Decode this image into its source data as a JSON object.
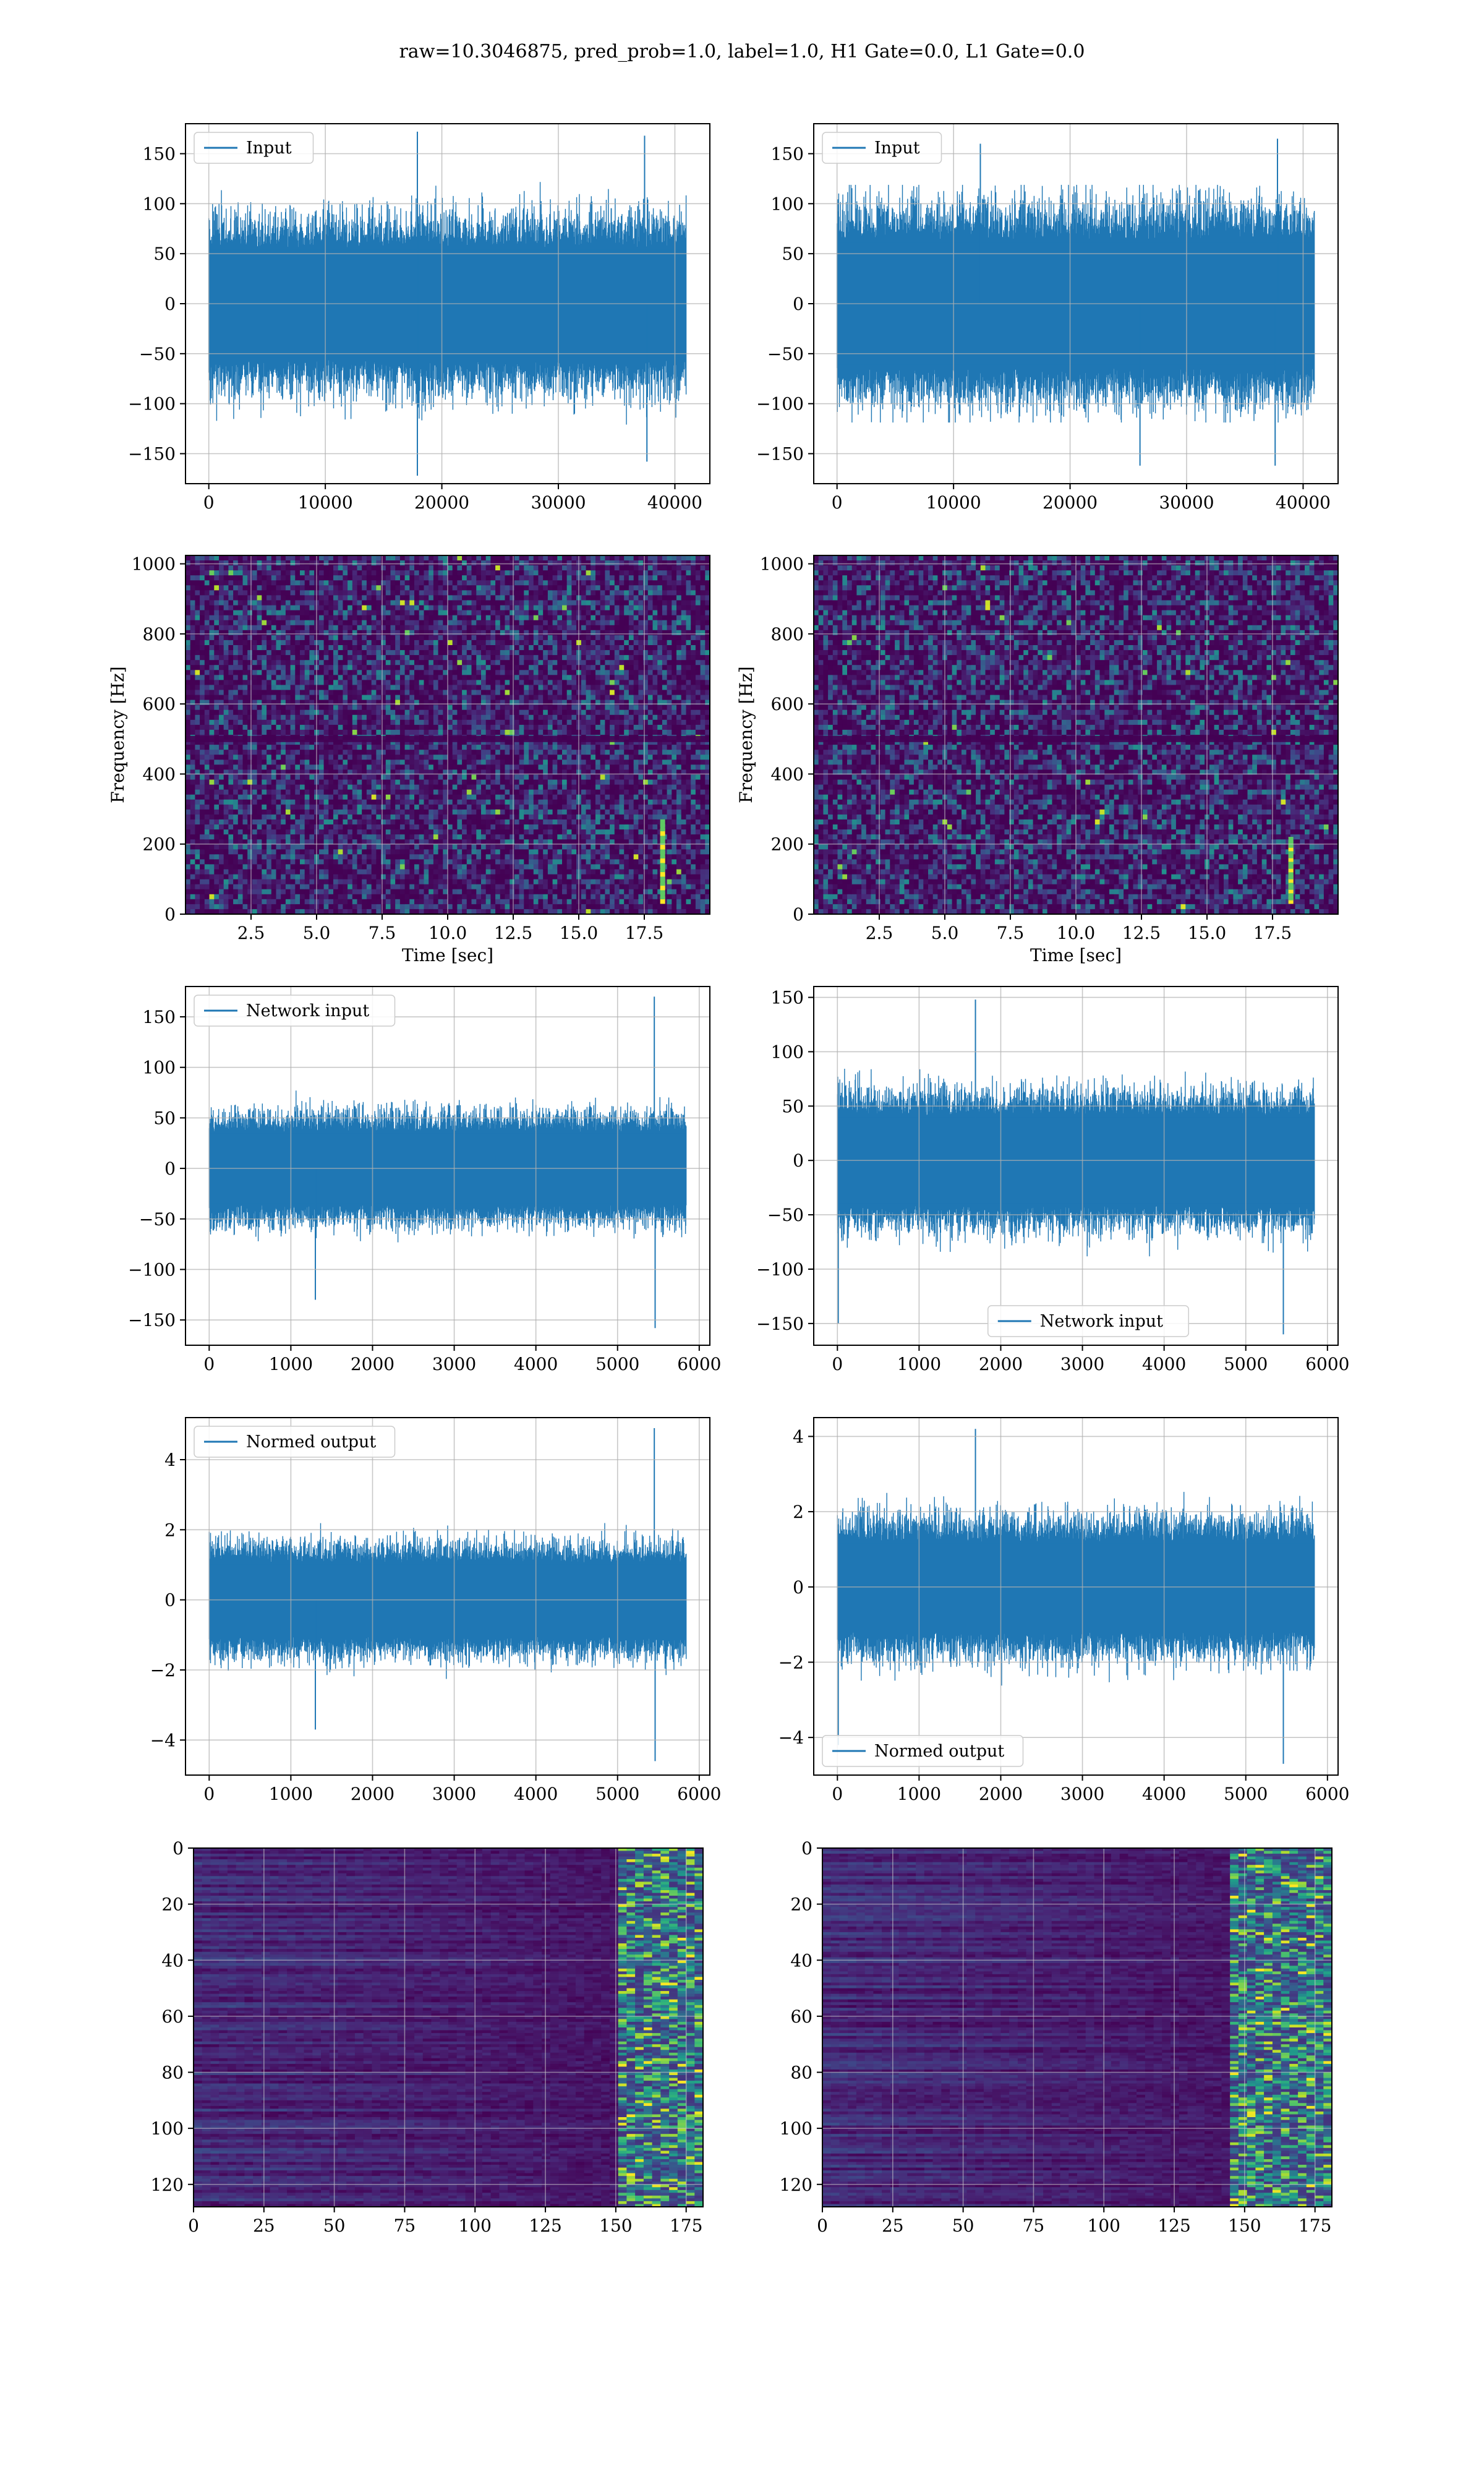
{
  "figure": {
    "title": "raw=10.3046875, pred_prob=1.0, label=1.0, H1 Gate=0.0, L1 Gate=0.0"
  },
  "colors": {
    "series": "#1f77b4",
    "grid": "#b0b0b0",
    "viridis_dark": "#440154",
    "viridis_mid": "#3b528b",
    "viridis_teal": "#21918c",
    "viridis_green": "#5ec962",
    "viridis_yellow": "#fde725"
  },
  "chart_data": [
    {
      "id": "input-h1",
      "type": "line",
      "legend": "top-left",
      "series": [
        {
          "name": "Input",
          "envelope": {
            "typical_amplitude": 75,
            "max": 172,
            "min": -172,
            "spikes": [
              [
                17900,
                172
              ],
              [
                17900,
                -172
              ],
              [
                37400,
                168
              ],
              [
                37600,
                -158
              ]
            ]
          }
        }
      ],
      "x_range": [
        0,
        40960
      ],
      "xlim": [
        -2000,
        43000
      ],
      "ylim": [
        -180,
        180
      ],
      "xticks": [
        "0",
        "10000",
        "20000",
        "30000",
        "40000"
      ],
      "xtick_values": [
        0,
        10000,
        20000,
        30000,
        40000
      ],
      "yticks": [
        "150",
        "100",
        "50",
        "0",
        "−50",
        "−100",
        "−150"
      ],
      "ytick_values": [
        150,
        100,
        50,
        0,
        -50,
        -100,
        -150
      ],
      "grid": true,
      "xlabel": "",
      "ylabel": ""
    },
    {
      "id": "input-l1",
      "type": "line",
      "legend": "top-left",
      "series": [
        {
          "name": "Input",
          "envelope": {
            "typical_amplitude": 85,
            "max": 165,
            "min": -165,
            "spikes": [
              [
                12300,
                160
              ],
              [
                26000,
                -162
              ],
              [
                37800,
                165
              ],
              [
                37600,
                -162
              ]
            ]
          }
        }
      ],
      "x_range": [
        0,
        40960
      ],
      "xlim": [
        -2000,
        43000
      ],
      "ylim": [
        -180,
        180
      ],
      "xticks": [
        "0",
        "10000",
        "20000",
        "30000",
        "40000"
      ],
      "xtick_values": [
        0,
        10000,
        20000,
        30000,
        40000
      ],
      "yticks": [
        "150",
        "100",
        "50",
        "0",
        "−50",
        "−100",
        "−150"
      ],
      "ytick_values": [
        150,
        100,
        50,
        0,
        -50,
        -100,
        -150
      ],
      "grid": true,
      "xlabel": "",
      "ylabel": ""
    },
    {
      "id": "spectrogram-h1",
      "type": "heatmap",
      "colormap": "viridis",
      "xlim": [
        0,
        20
      ],
      "ylim": [
        0,
        1024
      ],
      "xticks": [
        "2.5",
        "5.0",
        "7.5",
        "10.0",
        "12.5",
        "15.0",
        "17.5"
      ],
      "xtick_values": [
        2.5,
        5,
        7.5,
        10,
        12.5,
        15,
        17.5
      ],
      "yticks": [
        "1000",
        "800",
        "600",
        "400",
        "200",
        "0"
      ],
      "ytick_values": [
        1000,
        800,
        600,
        400,
        200,
        0
      ],
      "xlabel": "Time [sec]",
      "ylabel": "Frequency [Hz]",
      "grid": true,
      "features": {
        "horizontal_line_hz": 500,
        "chirp": {
          "time_sec": 18.2,
          "freq_from": 40,
          "freq_to": 260
        }
      }
    },
    {
      "id": "spectrogram-l1",
      "type": "heatmap",
      "colormap": "viridis",
      "xlim": [
        0,
        20
      ],
      "ylim": [
        0,
        1024
      ],
      "xticks": [
        "2.5",
        "5.0",
        "7.5",
        "10.0",
        "12.5",
        "15.0",
        "17.5"
      ],
      "xtick_values": [
        2.5,
        5,
        7.5,
        10,
        12.5,
        15,
        17.5
      ],
      "yticks": [
        "1000",
        "800",
        "600",
        "400",
        "200",
        "0"
      ],
      "ytick_values": [
        1000,
        800,
        600,
        400,
        200,
        0
      ],
      "xlabel": "Time [sec]",
      "ylabel": "Frequency [Hz]",
      "grid": true,
      "features": {
        "horizontal_line_hz": 500,
        "chirp": {
          "time_sec": 18.2,
          "freq_from": 40,
          "freq_to": 210
        }
      }
    },
    {
      "id": "network-input-h1",
      "type": "line",
      "legend": "top-left",
      "series": [
        {
          "name": "Network input",
          "envelope": {
            "typical_amplitude": 48,
            "max": 170,
            "min": -158,
            "spikes": [
              [
                1300,
                -130
              ],
              [
                5450,
                170
              ],
              [
                5460,
                -158
              ]
            ]
          }
        }
      ],
      "x_range": [
        0,
        5840
      ],
      "xlim": [
        -290,
        6130
      ],
      "ylim": [
        -175,
        180
      ],
      "xticks": [
        "0",
        "1000",
        "2000",
        "3000",
        "4000",
        "5000",
        "6000"
      ],
      "xtick_values": [
        0,
        1000,
        2000,
        3000,
        4000,
        5000,
        6000
      ],
      "yticks": [
        "150",
        "100",
        "50",
        "0",
        "−50",
        "−100",
        "−150"
      ],
      "ytick_values": [
        150,
        100,
        50,
        0,
        -50,
        -100,
        -150
      ],
      "grid": true,
      "xlabel": "",
      "ylabel": ""
    },
    {
      "id": "network-input-l1",
      "type": "line",
      "legend": "bottom-center",
      "series": [
        {
          "name": "Network input",
          "envelope": {
            "typical_amplitude": 55,
            "max": 148,
            "min": -160,
            "spikes": [
              [
                1690,
                148
              ],
              [
                5460,
                -160
              ],
              [
                10,
                -150
              ]
            ]
          }
        }
      ],
      "x_range": [
        0,
        5840
      ],
      "xlim": [
        -290,
        6130
      ],
      "ylim": [
        -170,
        160
      ],
      "xticks": [
        "0",
        "1000",
        "2000",
        "3000",
        "4000",
        "5000",
        "6000"
      ],
      "xtick_values": [
        0,
        1000,
        2000,
        3000,
        4000,
        5000,
        6000
      ],
      "yticks": [
        "150",
        "100",
        "50",
        "0",
        "−50",
        "−100",
        "−150"
      ],
      "ytick_values": [
        150,
        100,
        50,
        0,
        -50,
        -100,
        -150
      ],
      "grid": true,
      "xlabel": "",
      "ylabel": ""
    },
    {
      "id": "normed-output-h1",
      "type": "line",
      "legend": "top-left",
      "series": [
        {
          "name": "Normed output",
          "envelope": {
            "typical_amplitude": 1.4,
            "max": 4.9,
            "min": -4.6,
            "spikes": [
              [
                1300,
                -3.7
              ],
              [
                5450,
                4.9
              ],
              [
                5460,
                -4.6
              ]
            ]
          }
        }
      ],
      "x_range": [
        0,
        5840
      ],
      "xlim": [
        -290,
        6130
      ],
      "ylim": [
        -5,
        5.2
      ],
      "xticks": [
        "0",
        "1000",
        "2000",
        "3000",
        "4000",
        "5000",
        "6000"
      ],
      "xtick_values": [
        0,
        1000,
        2000,
        3000,
        4000,
        5000,
        6000
      ],
      "yticks": [
        "4",
        "2",
        "0",
        "−2",
        "−4"
      ],
      "ytick_values": [
        4,
        2,
        0,
        -2,
        -4
      ],
      "grid": true,
      "xlabel": "",
      "ylabel": ""
    },
    {
      "id": "normed-output-l1",
      "type": "line",
      "legend": "bottom-left",
      "series": [
        {
          "name": "Normed output",
          "envelope": {
            "typical_amplitude": 1.6,
            "max": 4.2,
            "min": -4.7,
            "spikes": [
              [
                1690,
                4.2
              ],
              [
                5460,
                -4.7
              ],
              [
                10,
                -4.2
              ]
            ]
          }
        }
      ],
      "x_range": [
        0,
        5840
      ],
      "xlim": [
        -290,
        6130
      ],
      "ylim": [
        -5,
        4.5
      ],
      "xticks": [
        "0",
        "1000",
        "2000",
        "3000",
        "4000",
        "5000",
        "6000"
      ],
      "xtick_values": [
        0,
        1000,
        2000,
        3000,
        4000,
        5000,
        6000
      ],
      "yticks": [
        "4",
        "2",
        "0",
        "−2",
        "−4"
      ],
      "ytick_values": [
        4,
        2,
        0,
        -2,
        -4
      ],
      "grid": true,
      "xlabel": "",
      "ylabel": ""
    },
    {
      "id": "embedding-h1",
      "type": "heatmap",
      "colormap": "viridis",
      "xlim": [
        0,
        181
      ],
      "ylim": [
        128,
        0
      ],
      "xticks": [
        "0",
        "25",
        "50",
        "75",
        "100",
        "125",
        "150",
        "175"
      ],
      "xtick_values": [
        0,
        25,
        50,
        75,
        100,
        125,
        150,
        175
      ],
      "yticks": [
        "0",
        "20",
        "40",
        "60",
        "80",
        "100",
        "120"
      ],
      "ytick_values": [
        0,
        20,
        40,
        60,
        80,
        100,
        120
      ],
      "grid": true,
      "xlabel": "",
      "ylabel": "",
      "features": {
        "bright_region_cols": [
          150,
          181
        ]
      }
    },
    {
      "id": "embedding-l1",
      "type": "heatmap",
      "colormap": "viridis",
      "xlim": [
        0,
        181
      ],
      "ylim": [
        128,
        0
      ],
      "xticks": [
        "0",
        "25",
        "50",
        "75",
        "100",
        "125",
        "150",
        "175"
      ],
      "xtick_values": [
        0,
        25,
        50,
        75,
        100,
        125,
        150,
        175
      ],
      "yticks": [
        "0",
        "20",
        "40",
        "60",
        "80",
        "100",
        "120"
      ],
      "ytick_values": [
        0,
        20,
        40,
        60,
        80,
        100,
        120
      ],
      "grid": true,
      "xlabel": "",
      "ylabel": "",
      "features": {
        "bright_region_cols": [
          145,
          181
        ]
      }
    }
  ]
}
